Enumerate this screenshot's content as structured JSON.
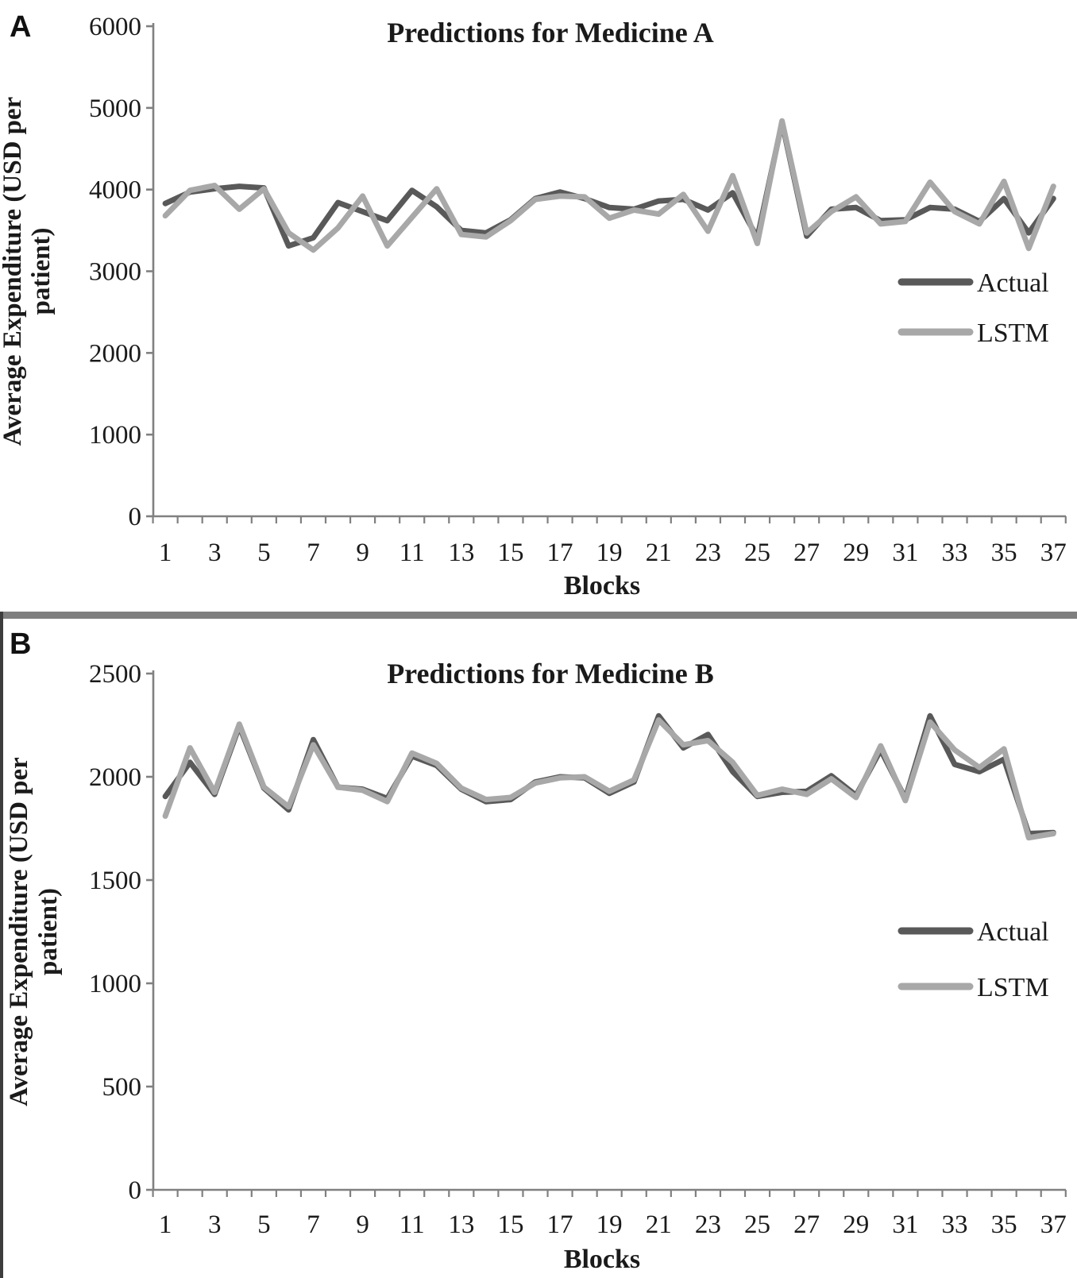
{
  "figure": {
    "background": "#ffffff",
    "divider_color": "#7f7f7f",
    "axis_color": "#808080",
    "text_color": "#1a1a1a"
  },
  "chart_data": [
    {
      "type": "line",
      "panel_label": "A",
      "title": "Predictions for Medicine A",
      "xlabel": "Blocks",
      "ylabel_lines": [
        "Average Expenditure  (USD per",
        "patient)"
      ],
      "ylim": [
        0,
        6000
      ],
      "ytick_labels": [
        "0",
        "1000",
        "2000",
        "3000",
        "4000",
        "5000",
        "6000"
      ],
      "xtick_labels": [
        "1",
        "3",
        "5",
        "7",
        "9",
        "11",
        "13",
        "15",
        "17",
        "19",
        "21",
        "23",
        "25",
        "27",
        "29",
        "31",
        "33",
        "35",
        "37"
      ],
      "x": [
        1,
        2,
        3,
        4,
        5,
        6,
        7,
        8,
        9,
        10,
        11,
        12,
        13,
        14,
        15,
        16,
        17,
        18,
        19,
        20,
        21,
        22,
        23,
        24,
        25,
        26,
        27,
        28,
        29,
        30,
        31,
        32,
        33,
        34,
        35,
        36,
        37
      ],
      "grid": false,
      "legend_position": "right-middle",
      "series": [
        {
          "name": "Actual",
          "color": "#595959",
          "values": [
            3830,
            3970,
            4010,
            4040,
            4020,
            3310,
            3410,
            3840,
            3730,
            3620,
            3990,
            3790,
            3500,
            3470,
            3630,
            3890,
            3970,
            3890,
            3780,
            3760,
            3860,
            3880,
            3750,
            3960,
            3410,
            4820,
            3430,
            3760,
            3780,
            3620,
            3630,
            3780,
            3760,
            3610,
            3890,
            3470,
            3890
          ]
        },
        {
          "name": "LSTM",
          "color": "#a8a8a8",
          "values": [
            3680,
            3990,
            4050,
            3760,
            4010,
            3470,
            3260,
            3530,
            3920,
            3310,
            3660,
            4010,
            3450,
            3420,
            3620,
            3880,
            3920,
            3910,
            3650,
            3750,
            3700,
            3940,
            3490,
            4170,
            3340,
            4840,
            3470,
            3730,
            3910,
            3580,
            3610,
            4090,
            3730,
            3580,
            4100,
            3280,
            4040
          ]
        }
      ]
    },
    {
      "type": "line",
      "panel_label": "B",
      "title": "Predictions for Medicine B",
      "xlabel": "Blocks",
      "ylabel_lines": [
        "Average Expenditure  (USD per",
        "patient)"
      ],
      "ylim": [
        0,
        2500
      ],
      "ytick_labels": [
        "0",
        "500",
        "1000",
        "1500",
        "2000",
        "2500"
      ],
      "xtick_labels": [
        "1",
        "3",
        "5",
        "7",
        "9",
        "11",
        "13",
        "15",
        "17",
        "19",
        "21",
        "23",
        "25",
        "27",
        "29",
        "31",
        "33",
        "35",
        "37"
      ],
      "x": [
        1,
        2,
        3,
        4,
        5,
        6,
        7,
        8,
        9,
        10,
        11,
        12,
        13,
        14,
        15,
        16,
        17,
        18,
        19,
        20,
        21,
        22,
        23,
        24,
        25,
        26,
        27,
        28,
        29,
        30,
        31,
        32,
        33,
        34,
        35,
        36,
        37
      ],
      "grid": false,
      "legend_position": "right-middle",
      "series": [
        {
          "name": "Actual",
          "color": "#595959",
          "values": [
            1905,
            2070,
            1915,
            2245,
            1945,
            1840,
            2180,
            1950,
            1940,
            1895,
            2100,
            2055,
            1940,
            1880,
            1890,
            1975,
            2000,
            1995,
            1920,
            1975,
            2295,
            2140,
            2205,
            2025,
            1905,
            1925,
            1930,
            2005,
            1910,
            2130,
            1895,
            2295,
            2060,
            2025,
            2085,
            1725,
            1730
          ]
        },
        {
          "name": "LSTM",
          "color": "#a8a8a8",
          "values": [
            1810,
            2140,
            1925,
            2255,
            1950,
            1855,
            2155,
            1950,
            1935,
            1880,
            2115,
            2065,
            1945,
            1890,
            1900,
            1970,
            1995,
            2000,
            1930,
            1985,
            2275,
            2155,
            2175,
            2070,
            1910,
            1940,
            1915,
            1990,
            1900,
            2150,
            1885,
            2265,
            2130,
            2045,
            2135,
            1705,
            1725
          ]
        }
      ]
    }
  ]
}
